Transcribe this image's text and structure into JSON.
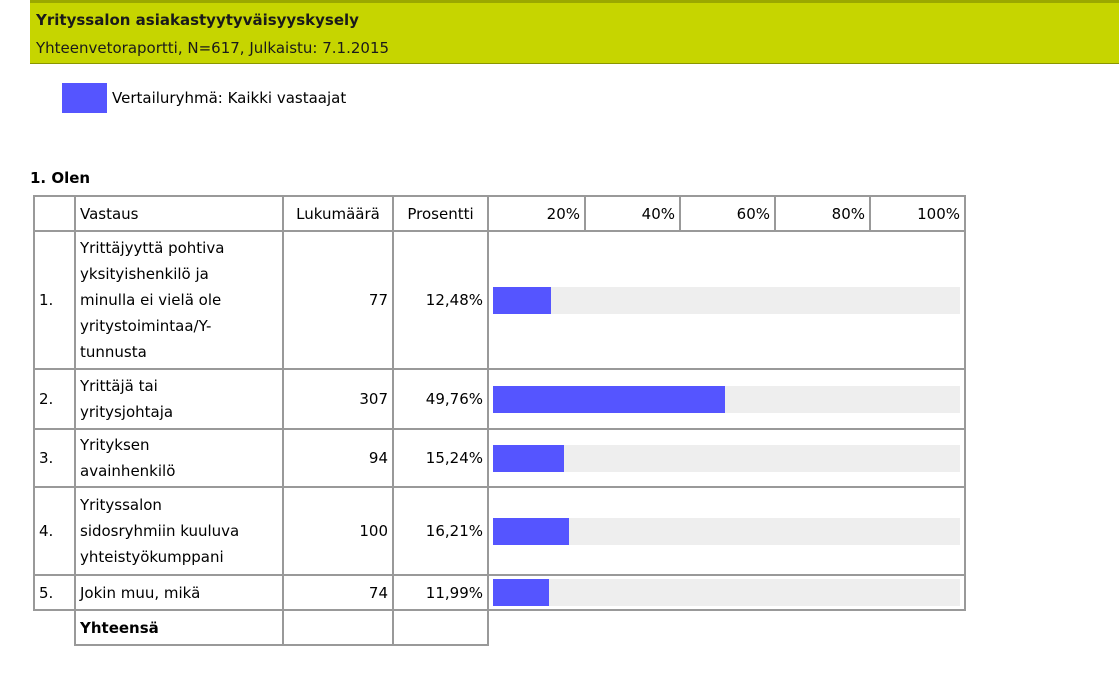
{
  "header": {
    "title": "Yrityssalon asiakastyytyväisyyskysely",
    "subtitle": "Yhteenvetoraportti, N=617, Julkaistu: 7.1.2015"
  },
  "colors": {
    "header_bg": "#c6d500",
    "bar": "#5555ff",
    "track": "#eeeeee"
  },
  "legend": {
    "label": "Vertailuryhmä: Kaikki vastaajat"
  },
  "question": {
    "title": "1. Olen",
    "columns": {
      "answer": "Vastaus",
      "count": "Lukumäärä",
      "percent": "Prosentti"
    },
    "scale": [
      "20%",
      "40%",
      "60%",
      "80%",
      "100%"
    ],
    "rows": [
      {
        "index": "1.",
        "label_lines": [
          "Yrittäjyyttä pohtiva",
          "yksityishenkilö ja",
          "minulla ei vielä ole",
          "yritystoimintaa/Y-",
          "tunnusta"
        ],
        "count": "77",
        "percent_text": "12,48%",
        "percent": 12.48
      },
      {
        "index": "2.",
        "label_lines": [
          "Yrittäjä tai",
          "yritysjohtaja"
        ],
        "count": "307",
        "percent_text": "49,76%",
        "percent": 49.76
      },
      {
        "index": "3.",
        "label_lines": [
          "Yrityksen",
          "avainhenkilö"
        ],
        "count": "94",
        "percent_text": "15,24%",
        "percent": 15.24
      },
      {
        "index": "4.",
        "label_lines": [
          "Yrityssalon",
          "sidosryhmiin kuuluva",
          "yhteistyökumppani"
        ],
        "count": "100",
        "percent_text": "16,21%",
        "percent": 16.21
      },
      {
        "index": "5.",
        "label_lines": [
          "Jokin muu, mikä"
        ],
        "count": "74",
        "percent_text": "11,99%",
        "percent": 11.99
      }
    ],
    "total_label": "Yhteensä"
  }
}
